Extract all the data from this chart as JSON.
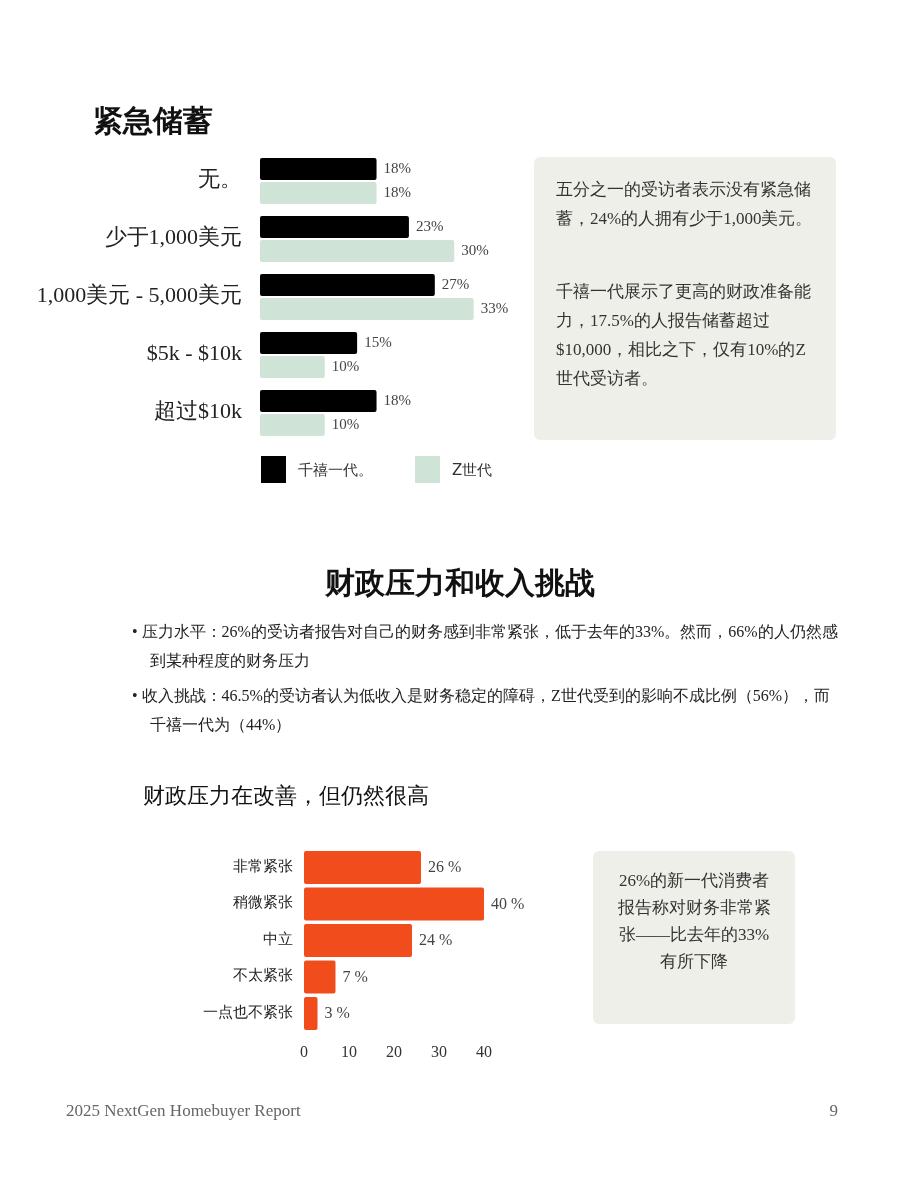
{
  "chart_data": [
    {
      "type": "bar",
      "orientation": "horizontal",
      "title": "紧急储蓄",
      "categories": [
        "无。",
        "少于1,000美元",
        "1,000美元 - 5,000美元",
        "$5k - $10k",
        "超过$10k"
      ],
      "legend": "bottom",
      "series": [
        {
          "name": "千禧一代。",
          "color": "#000000",
          "values": [
            18,
            23,
            27,
            15,
            18
          ],
          "value_labels": [
            "18%",
            "23%",
            "27%",
            "15%",
            "18%"
          ]
        },
        {
          "name": "Z世代",
          "color": "#cfe3d7",
          "values": [
            18,
            30,
            33,
            10,
            10
          ],
          "value_labels": [
            "18%",
            "30%",
            "33%",
            "10%",
            "10%"
          ]
        }
      ]
    },
    {
      "type": "other",
      "annotations": [
        "五分之一的受访者表示没有紧急储蓄，24%的人拥有少于1,000美元。",
        "千禧一代展示了更高的财政准备能力，17.5%的人报告储蓄超过$10,000，相比之下，仅有10%的Z世代受访者。"
      ]
    },
    {
      "type": "other",
      "title": "财政压力和收入挑战",
      "annotations": [
        "• 压力水平：26%的受访者报告对自己的财务感到非常紧张，低于去年的33%。然而，66%的人仍然感到某种程度的财务压力",
        "• 收入挑战：46.5%的受访者认为低收入是财务稳定的障碍，Z世代受到的影响不成比例（56%），而千禧一代为（44%）"
      ]
    },
    {
      "type": "bar",
      "orientation": "horizontal",
      "title": "财政压力在改善，但仍然很高",
      "categories": [
        "非常紧张",
        "稍微紧张",
        "中立",
        "不太紧张",
        "一点也不紧张"
      ],
      "color": "#f04c1c",
      "values": [
        26,
        40,
        24,
        7,
        3
      ],
      "value_labels": [
        "26 %",
        "40 %",
        "24 %",
        "7 %",
        "3 %"
      ],
      "xlim": [
        0,
        40
      ],
      "xticks": [
        0,
        10,
        20,
        30,
        40
      ]
    },
    {
      "type": "other",
      "annotations": [
        "26%的新一代消费者报告称对财务非常紧张——比去年的33%有所下降"
      ]
    },
    {
      "type": "other",
      "annotations": [
        "2025 NextGen Homebuyer Report",
        "9"
      ]
    }
  ]
}
